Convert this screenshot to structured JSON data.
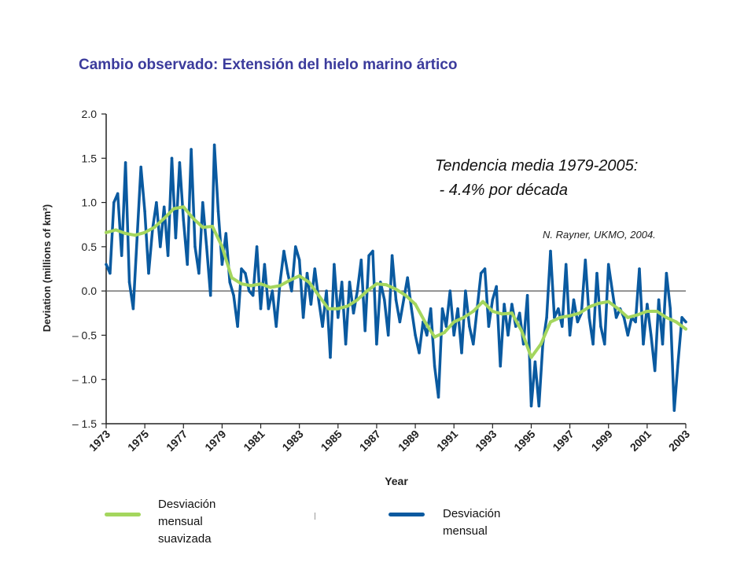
{
  "title": "Cambio observado: Extensión del hielo marino ártico",
  "annotation": {
    "line1": "Tendencia media 1979-2005:",
    "line2": " - 4.4% por década"
  },
  "credit": "N. Rayner, UKMO, 2004.",
  "legend": [
    {
      "label_line1": "Desviación mensual",
      "label_line2": "suavizada",
      "color": "#a4d65e"
    },
    {
      "label_line1": "Desviación mensual",
      "label_line2": "",
      "color": "#0a5aa0"
    }
  ],
  "colors": {
    "monthly": "#0a5aa0",
    "smoothed": "#a4d65e",
    "zero_line": "#555555",
    "axis": "#222222"
  },
  "chart_data": {
    "type": "line",
    "xlabel": "Year",
    "ylabel": "Deviation (millions of km²)",
    "xlim": [
      1973,
      2003
    ],
    "ylim": [
      -1.5,
      2.0
    ],
    "xticks": [
      1973,
      1975,
      1977,
      1979,
      1981,
      1983,
      1985,
      1987,
      1989,
      1991,
      1993,
      1995,
      1997,
      1999,
      2001,
      2003
    ],
    "yticks": [
      2.0,
      1.5,
      1.0,
      0.5,
      0.0,
      -0.5,
      -1.0,
      -1.5
    ],
    "ytick_labels": [
      "2.0",
      "1.5",
      "1.0",
      "0.5",
      "0.0",
      "– 0.5",
      "– 1.0",
      "– 1.5"
    ],
    "grid": false,
    "series": [
      {
        "name": "Desviación mensual",
        "x": [
          1973.0,
          1973.2,
          1973.4,
          1973.6,
          1973.8,
          1974.0,
          1974.2,
          1974.4,
          1974.6,
          1974.8,
          1975.0,
          1975.2,
          1975.4,
          1975.6,
          1975.8,
          1976.0,
          1976.2,
          1976.4,
          1976.6,
          1976.8,
          1977.0,
          1977.2,
          1977.4,
          1977.6,
          1977.8,
          1978.0,
          1978.2,
          1978.4,
          1978.6,
          1978.8,
          1979.0,
          1979.2,
          1979.4,
          1979.6,
          1979.8,
          1980.0,
          1980.2,
          1980.4,
          1980.6,
          1980.8,
          1981.0,
          1981.2,
          1981.4,
          1981.6,
          1981.8,
          1982.0,
          1982.2,
          1982.4,
          1982.6,
          1982.8,
          1983.0,
          1983.2,
          1983.4,
          1983.6,
          1983.8,
          1984.0,
          1984.2,
          1984.4,
          1984.6,
          1984.8,
          1985.0,
          1985.2,
          1985.4,
          1985.6,
          1985.8,
          1986.0,
          1986.2,
          1986.4,
          1986.6,
          1986.8,
          1987.0,
          1987.2,
          1987.4,
          1987.6,
          1987.8,
          1988.0,
          1988.2,
          1988.4,
          1988.6,
          1988.8,
          1989.0,
          1989.2,
          1989.4,
          1989.6,
          1989.8,
          1990.0,
          1990.2,
          1990.4,
          1990.6,
          1990.8,
          1991.0,
          1991.2,
          1991.4,
          1991.6,
          1991.8,
          1992.0,
          1992.2,
          1992.4,
          1992.6,
          1992.8,
          1993.0,
          1993.2,
          1993.4,
          1993.6,
          1993.8,
          1994.0,
          1994.2,
          1994.4,
          1994.6,
          1994.8,
          1995.0,
          1995.2,
          1995.4,
          1995.6,
          1995.8,
          1996.0,
          1996.2,
          1996.4,
          1996.6,
          1996.8,
          1997.0,
          1997.2,
          1997.4,
          1997.6,
          1997.8,
          1998.0,
          1998.2,
          1998.4,
          1998.6,
          1998.8,
          1999.0,
          1999.2,
          1999.4,
          1999.6,
          1999.8,
          2000.0,
          2000.2,
          2000.4,
          2000.6,
          2000.8,
          2001.0,
          2001.2,
          2001.4,
          2001.6,
          2001.8,
          2002.0,
          2002.2,
          2002.4,
          2002.6,
          2002.8,
          2003.0
        ],
        "y": [
          0.3,
          0.2,
          1.0,
          1.1,
          0.4,
          1.45,
          0.1,
          -0.2,
          0.6,
          1.4,
          0.9,
          0.2,
          0.7,
          1.0,
          0.5,
          0.95,
          0.4,
          1.5,
          0.6,
          1.45,
          0.8,
          0.3,
          1.6,
          0.5,
          0.2,
          1.0,
          0.5,
          -0.05,
          1.65,
          0.9,
          0.3,
          0.65,
          0.1,
          -0.05,
          -0.4,
          0.25,
          0.2,
          0.0,
          -0.05,
          0.5,
          -0.2,
          0.3,
          -0.2,
          0.0,
          -0.4,
          0.1,
          0.45,
          0.2,
          0.0,
          0.5,
          0.35,
          -0.3,
          0.2,
          -0.15,
          0.25,
          -0.1,
          -0.4,
          0.0,
          -0.75,
          0.3,
          -0.3,
          0.1,
          -0.6,
          0.1,
          -0.25,
          0.0,
          0.35,
          -0.45,
          0.4,
          0.45,
          -0.6,
          0.1,
          -0.1,
          -0.5,
          0.4,
          -0.1,
          -0.35,
          -0.1,
          0.15,
          -0.2,
          -0.5,
          -0.7,
          -0.35,
          -0.5,
          -0.2,
          -0.85,
          -1.2,
          -0.2,
          -0.4,
          0.0,
          -0.5,
          -0.2,
          -0.7,
          0.0,
          -0.4,
          -0.6,
          -0.2,
          0.2,
          0.25,
          -0.4,
          -0.1,
          0.05,
          -0.85,
          -0.15,
          -0.5,
          -0.15,
          -0.4,
          -0.25,
          -0.6,
          -0.05,
          -1.3,
          -0.8,
          -1.3,
          -0.6,
          -0.3,
          0.45,
          -0.3,
          -0.2,
          -0.4,
          0.3,
          -0.5,
          -0.1,
          -0.35,
          -0.25,
          0.35,
          -0.3,
          -0.6,
          0.2,
          -0.4,
          -0.6,
          0.3,
          0.0,
          -0.3,
          -0.2,
          -0.3,
          -0.5,
          -0.3,
          -0.35,
          0.25,
          -0.6,
          -0.15,
          -0.5,
          -0.9,
          -0.1,
          -0.6,
          0.2,
          -0.2,
          -1.35,
          -0.8,
          -0.3,
          -0.35
        ]
      },
      {
        "name": "Desviación mensual suavizada",
        "x": [
          1973.0,
          1973.5,
          1974.0,
          1974.5,
          1975.0,
          1975.5,
          1976.0,
          1976.5,
          1977.0,
          1977.5,
          1978.0,
          1978.5,
          1979.0,
          1979.5,
          1980.0,
          1980.5,
          1981.0,
          1981.5,
          1982.0,
          1982.5,
          1983.0,
          1983.5,
          1984.0,
          1984.5,
          1985.0,
          1985.5,
          1986.0,
          1986.5,
          1987.0,
          1987.5,
          1988.0,
          1988.5,
          1989.0,
          1989.5,
          1990.0,
          1990.5,
          1991.0,
          1991.5,
          1992.0,
          1992.5,
          1993.0,
          1993.5,
          1994.0,
          1994.5,
          1995.0,
          1995.5,
          1996.0,
          1996.5,
          1997.0,
          1997.5,
          1998.0,
          1998.5,
          1999.0,
          1999.5,
          2000.0,
          2000.5,
          2001.0,
          2001.5,
          2002.0,
          2002.5,
          2003.0
        ],
        "y": [
          0.66,
          0.69,
          0.65,
          0.63,
          0.66,
          0.72,
          0.82,
          0.93,
          0.95,
          0.82,
          0.72,
          0.73,
          0.5,
          0.15,
          0.08,
          0.06,
          0.08,
          0.04,
          0.06,
          0.12,
          0.17,
          0.1,
          -0.05,
          -0.2,
          -0.2,
          -0.17,
          -0.1,
          0.0,
          0.08,
          0.07,
          0.02,
          -0.05,
          -0.15,
          -0.35,
          -0.52,
          -0.47,
          -0.35,
          -0.3,
          -0.23,
          -0.12,
          -0.23,
          -0.26,
          -0.25,
          -0.45,
          -0.75,
          -0.6,
          -0.35,
          -0.3,
          -0.28,
          -0.25,
          -0.18,
          -0.14,
          -0.12,
          -0.2,
          -0.3,
          -0.27,
          -0.23,
          -0.23,
          -0.3,
          -0.35,
          -0.43
        ]
      }
    ]
  }
}
